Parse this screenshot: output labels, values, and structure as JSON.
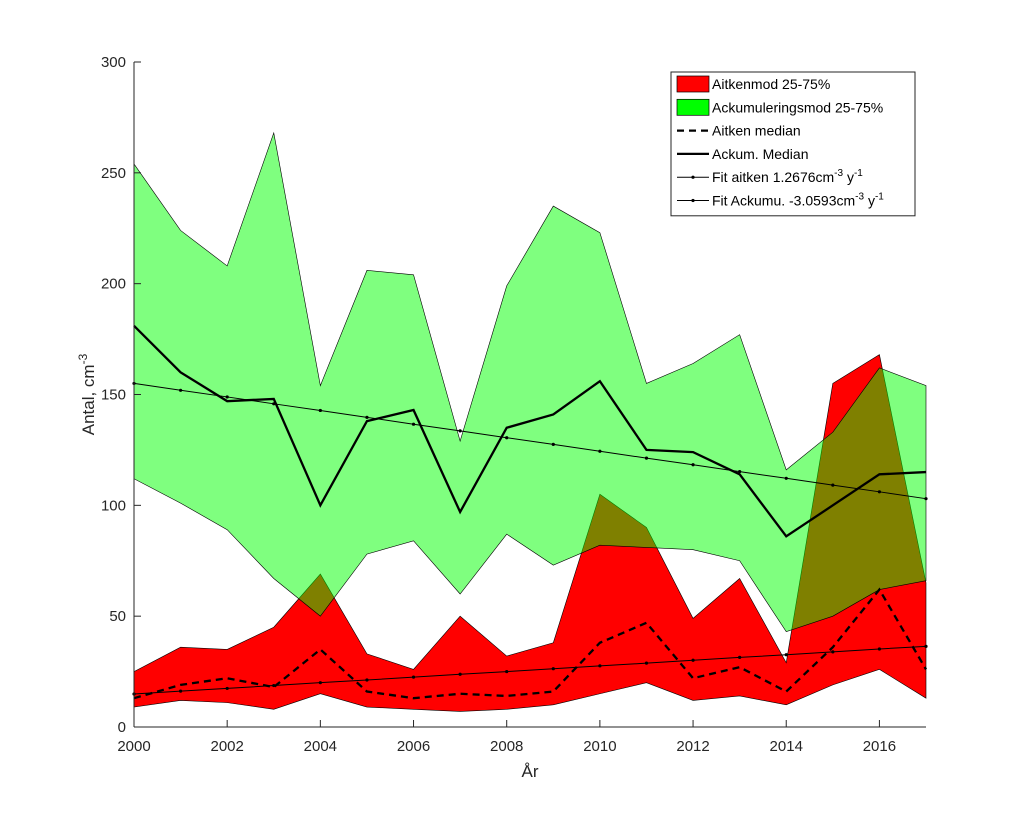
{
  "chart_data": {
    "type": "area",
    "xlabel": "År",
    "ylabel": "Antal, cm",
    "ylabel_sup": "-3",
    "xlim": [
      2000,
      2017
    ],
    "ylim": [
      0,
      300
    ],
    "x_ticks": [
      "2000",
      "2002",
      "2004",
      "2006",
      "2008",
      "2010",
      "2012",
      "2014",
      "2016"
    ],
    "y_ticks": [
      "0",
      "50",
      "100",
      "150",
      "200",
      "250",
      "300"
    ],
    "grid": false,
    "legend_position": "top-right",
    "x": [
      2000,
      2001,
      2002,
      2003,
      2004,
      2005,
      2006,
      2007,
      2008,
      2009,
      2010,
      2011,
      2012,
      2013,
      2014,
      2015,
      2016,
      2017
    ],
    "series": [
      {
        "name": "Aitkenmod 25-75%",
        "kind": "band",
        "color": "#ff0000",
        "opacity": 1,
        "upper": [
          25,
          36,
          35,
          45,
          69,
          33,
          26,
          50,
          32,
          38,
          105,
          90,
          49,
          67,
          29,
          155,
          168,
          65
        ],
        "lower": [
          9,
          12,
          11,
          8,
          15,
          9,
          8,
          7,
          8,
          10,
          15,
          20,
          12,
          14,
          10,
          19,
          26,
          13
        ]
      },
      {
        "name": "Ackumuleringsmod 25-75%",
        "kind": "band",
        "color": "#00ff00",
        "opacity": 0.5,
        "upper": [
          254,
          224,
          208,
          268,
          154,
          206,
          204,
          129,
          199,
          235,
          223,
          155,
          164,
          177,
          116,
          133,
          162,
          154
        ],
        "lower": [
          112,
          101,
          89,
          67,
          50,
          78,
          84,
          60,
          87,
          73,
          82,
          81,
          80,
          75,
          43,
          50,
          62,
          66
        ]
      },
      {
        "name": "Aitken median",
        "kind": "line",
        "dash": "dashed",
        "color": "#000000",
        "values": [
          13,
          19,
          22,
          18,
          35,
          16,
          13,
          15,
          14,
          16,
          38,
          47,
          22,
          27,
          16,
          36,
          62,
          26
        ]
      },
      {
        "name": "Ackum. Median",
        "kind": "line",
        "dash": "solid",
        "color": "#000000",
        "values": [
          181,
          160,
          147,
          148,
          100,
          138,
          143,
          97,
          135,
          141,
          156,
          125,
          124,
          114,
          86,
          100,
          114,
          115
        ]
      },
      {
        "name": "Fit aitken 1.2676cm",
        "name_sup": "-3",
        "name_suffix": " y",
        "name_suffix_sup": "-1",
        "kind": "fit",
        "color": "#000000",
        "values": [
          14.9,
          16.2,
          17.4,
          18.7,
          20.0,
          21.2,
          22.5,
          23.8,
          25.0,
          26.3,
          27.6,
          28.8,
          30.1,
          31.4,
          32.6,
          33.9,
          35.2,
          36.4
        ]
      },
      {
        "name": "Fit Ackumu. -3.0593cm",
        "name_sup": "-3",
        "name_suffix": " y",
        "name_suffix_sup": "-1",
        "kind": "fit",
        "color": "#000000",
        "values": [
          155.0,
          151.9,
          148.9,
          145.8,
          142.8,
          139.7,
          136.6,
          133.6,
          130.5,
          127.5,
          124.4,
          121.3,
          118.3,
          115.2,
          112.2,
          109.1,
          106.1,
          103.0
        ]
      }
    ]
  }
}
